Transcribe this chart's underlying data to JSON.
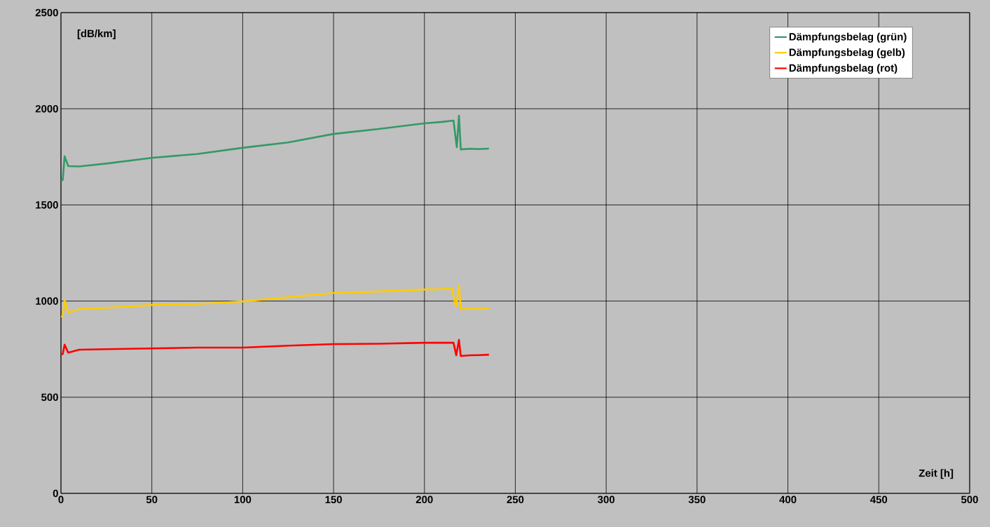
{
  "chart_data": {
    "type": "line",
    "xlabel": "Zeit [h]",
    "ylabel": "[dB/km]",
    "xlim": [
      0,
      500
    ],
    "ylim": [
      0,
      2500
    ],
    "xticks": [
      0,
      50,
      100,
      150,
      200,
      250,
      300,
      350,
      400,
      450,
      500
    ],
    "yticks": [
      0,
      500,
      1000,
      1500,
      2000,
      2500
    ],
    "grid": true,
    "legend": "top right",
    "marker": "none",
    "line_style": "solid",
    "series": [
      {
        "name": "Dämpfungsbelag (grün)",
        "color": "#339966",
        "x": [
          0,
          1,
          2,
          4,
          10,
          25,
          50,
          75,
          100,
          125,
          150,
          175,
          200,
          210,
          216,
          217.8,
          219,
          220,
          225,
          230,
          235.5
        ],
        "values": [
          1625,
          1630,
          1753,
          1702,
          1700,
          1715,
          1745,
          1765,
          1797,
          1825,
          1869,
          1895,
          1924,
          1932,
          1939,
          1800,
          1964,
          1789,
          1792,
          1790,
          1793
        ]
      },
      {
        "name": "Dämpfungsbelag (gelb)",
        "color": "#ffcc00",
        "x": [
          0,
          1,
          2,
          4,
          10,
          25,
          50,
          75,
          100,
          125,
          150,
          175,
          200,
          210,
          215,
          217.4,
          219,
          220,
          225,
          230,
          235.5
        ],
        "values": [
          918,
          922,
          1006,
          940,
          958,
          965,
          980,
          985,
          998,
          1020,
          1042,
          1050,
          1060,
          1062,
          1068,
          969,
          1082,
          958,
          960,
          958,
          962
        ]
      },
      {
        "name": "Dämpfungsbelag (rot)",
        "color": "#ff0000",
        "x": [
          0,
          1,
          2,
          4,
          10,
          25,
          50,
          75,
          100,
          125,
          150,
          175,
          200,
          210,
          216,
          217.5,
          219,
          220,
          225,
          230,
          235.5
        ],
        "values": [
          721,
          725,
          773,
          732,
          747,
          750,
          754,
          758,
          758,
          768,
          776,
          778,
          783,
          783,
          783,
          718,
          798,
          714,
          718,
          719,
          721
        ]
      }
    ]
  }
}
